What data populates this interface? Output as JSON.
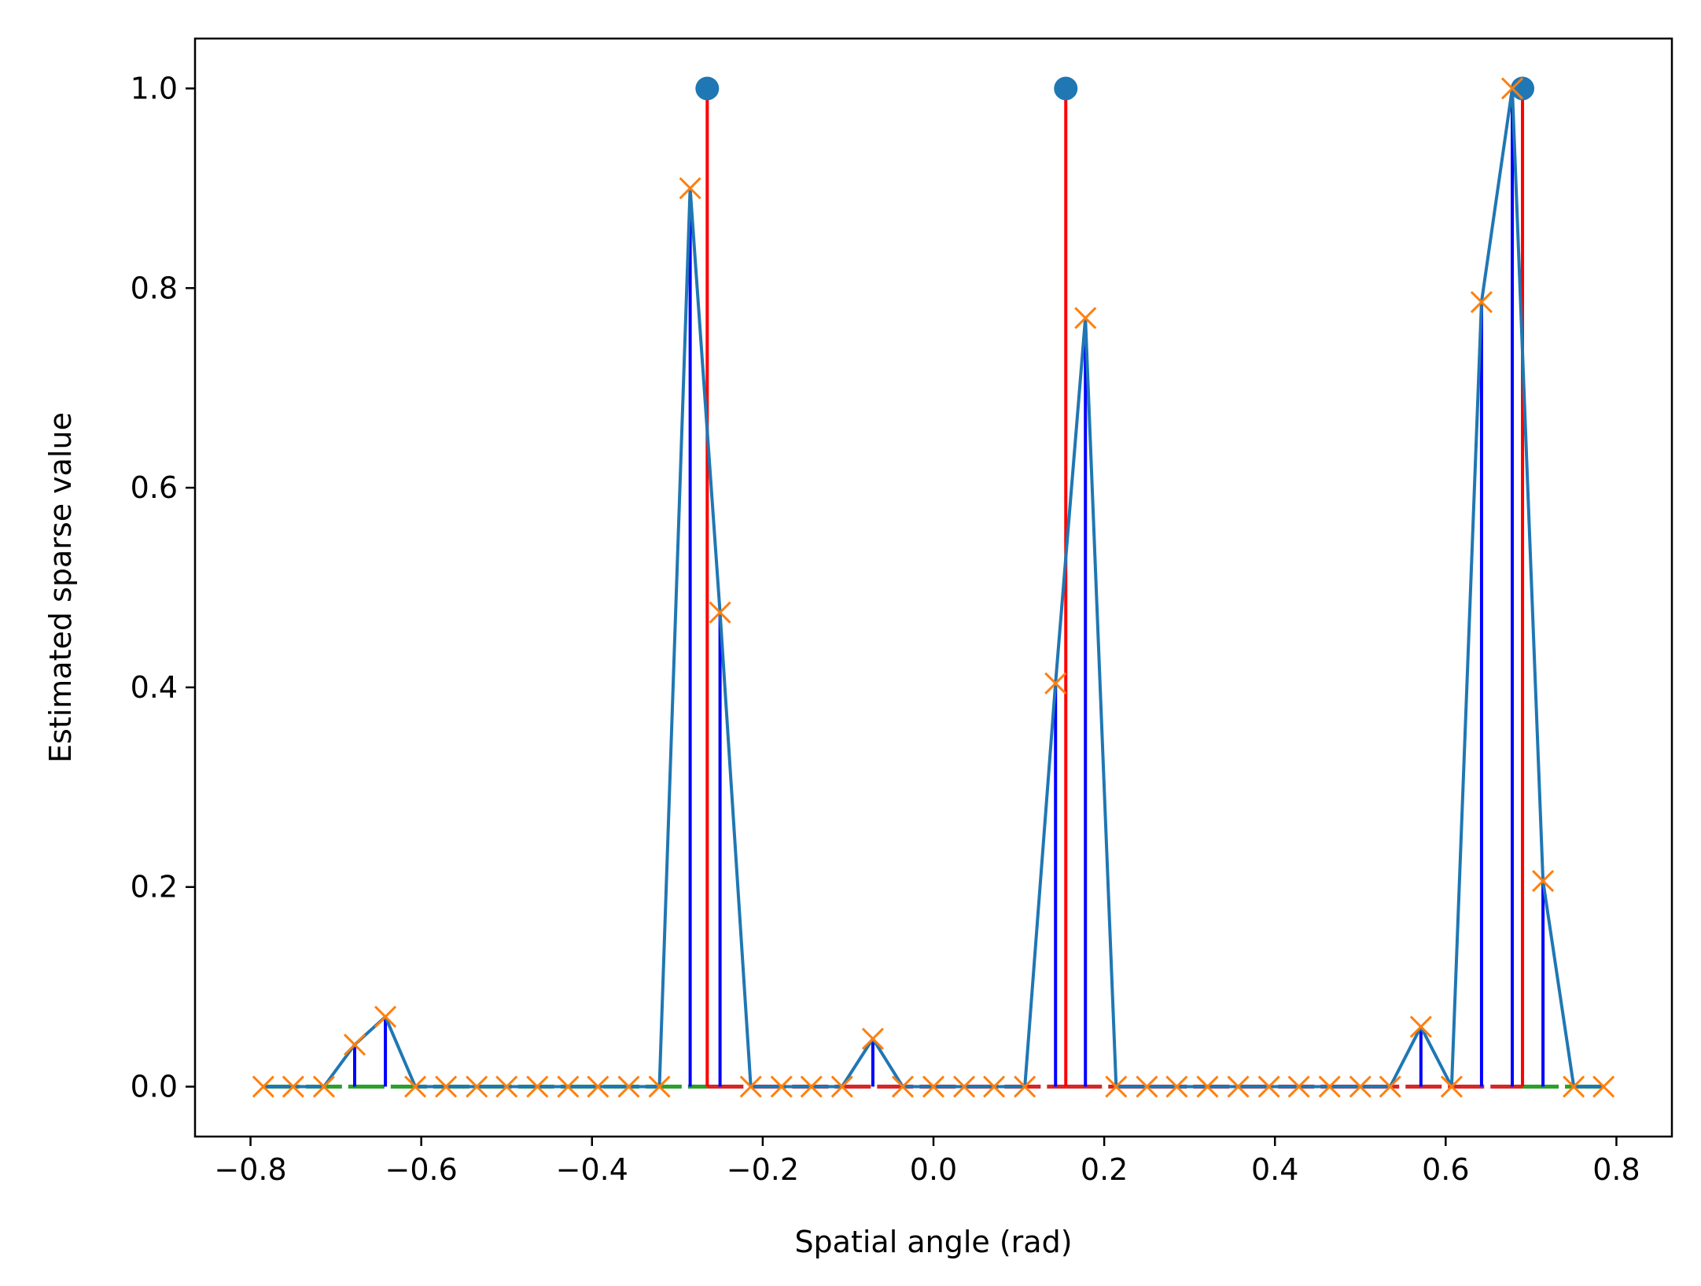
{
  "chart_data": {
    "type": "line",
    "xlabel": "Spatial angle (rad)",
    "ylabel": "Estimated sparse value",
    "xlim": [
      -0.865,
      0.865
    ],
    "ylim": [
      -0.05,
      1.05
    ],
    "xticks": [
      -0.8,
      -0.6,
      -0.4,
      -0.2,
      0.0,
      0.2,
      0.4,
      0.6,
      0.8
    ],
    "xtick_labels": [
      "−0.8",
      "−0.6",
      "−0.4",
      "−0.2",
      "0.0",
      "0.2",
      "0.4",
      "0.6",
      "0.8"
    ],
    "yticks": [
      0.0,
      0.2,
      0.4,
      0.6,
      0.8,
      1.0
    ],
    "ytick_labels": [
      "0.0",
      "0.2",
      "0.4",
      "0.6",
      "0.8",
      "1.0"
    ],
    "grid": false,
    "legend": "none",
    "true_sources": {
      "color": "#ff0000",
      "marker_color": "#1f77b4",
      "x": [
        -0.265,
        0.155,
        0.69
      ],
      "y": [
        1.0,
        1.0,
        1.0
      ]
    },
    "estimate": {
      "line_color": "#1f77b4",
      "marker_color": "#ff7f0e",
      "stem_color": "#0000ff",
      "x": [
        -0.785,
        -0.75,
        -0.714,
        -0.678,
        -0.642,
        -0.607,
        -0.571,
        -0.535,
        -0.5,
        -0.464,
        -0.428,
        -0.393,
        -0.357,
        -0.321,
        -0.285,
        -0.25,
        -0.214,
        -0.178,
        -0.143,
        -0.107,
        -0.071,
        -0.036,
        0.0,
        0.036,
        0.071,
        0.107,
        0.143,
        0.178,
        0.214,
        0.25,
        0.285,
        0.321,
        0.357,
        0.393,
        0.428,
        0.464,
        0.5,
        0.535,
        0.571,
        0.607,
        0.642,
        0.678,
        0.714,
        0.75,
        0.785
      ],
      "y": [
        0,
        0,
        0,
        0.042,
        0.07,
        0,
        0,
        0,
        0,
        0,
        0,
        0,
        0,
        0,
        0.9,
        0.475,
        0,
        0,
        0,
        0,
        0.048,
        0,
        0,
        0,
        0,
        0,
        0.404,
        0.77,
        0,
        0,
        0,
        0,
        0,
        0,
        0,
        0,
        0,
        0,
        0.06,
        0,
        0.786,
        1.0,
        0.206,
        0,
        0
      ]
    },
    "baselines": [
      {
        "color": "#2ca02c",
        "x": [
          -0.785,
          -0.265
        ]
      },
      {
        "color": "#d62728",
        "x": [
          -0.265,
          0.155
        ]
      },
      {
        "color": "#d62728",
        "x": [
          0.155,
          0.69
        ]
      },
      {
        "color": "#2ca02c",
        "x": [
          0.69,
          0.785
        ]
      }
    ]
  }
}
